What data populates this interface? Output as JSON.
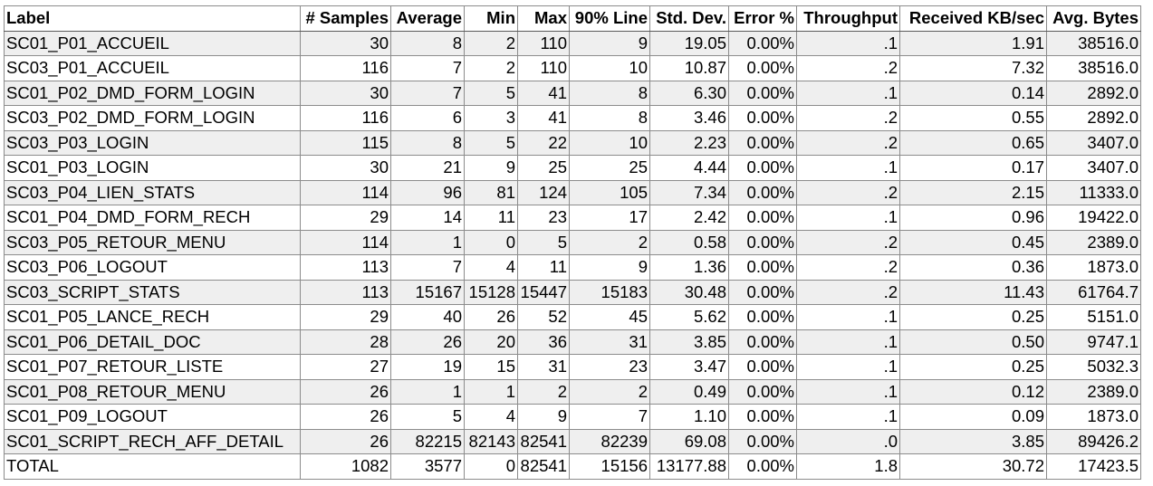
{
  "table": {
    "headers": [
      "Label",
      "# Samples",
      "Average",
      "Min",
      "Max",
      "90% Line",
      "Std. Dev.",
      "Error %",
      "Throughput",
      "Received KB/sec",
      "Avg. Bytes"
    ],
    "rows": [
      [
        "SC01_P01_ACCUEIL",
        "30",
        "8",
        "2",
        "110",
        "9",
        "19.05",
        "0.00%",
        ".1",
        "1.91",
        "38516.0"
      ],
      [
        "SC03_P01_ACCUEIL",
        "116",
        "7",
        "2",
        "110",
        "10",
        "10.87",
        "0.00%",
        ".2",
        "7.32",
        "38516.0"
      ],
      [
        "SC01_P02_DMD_FORM_LOGIN",
        "30",
        "7",
        "5",
        "41",
        "8",
        "6.30",
        "0.00%",
        ".1",
        "0.14",
        "2892.0"
      ],
      [
        "SC03_P02_DMD_FORM_LOGIN",
        "116",
        "6",
        "3",
        "41",
        "8",
        "3.46",
        "0.00%",
        ".2",
        "0.55",
        "2892.0"
      ],
      [
        "SC03_P03_LOGIN",
        "115",
        "8",
        "5",
        "22",
        "10",
        "2.23",
        "0.00%",
        ".2",
        "0.65",
        "3407.0"
      ],
      [
        "SC01_P03_LOGIN",
        "30",
        "21",
        "9",
        "25",
        "25",
        "4.44",
        "0.00%",
        ".1",
        "0.17",
        "3407.0"
      ],
      [
        "SC03_P04_LIEN_STATS",
        "114",
        "96",
        "81",
        "124",
        "105",
        "7.34",
        "0.00%",
        ".2",
        "2.15",
        "11333.0"
      ],
      [
        "SC01_P04_DMD_FORM_RECH",
        "29",
        "14",
        "11",
        "23",
        "17",
        "2.42",
        "0.00%",
        ".1",
        "0.96",
        "19422.0"
      ],
      [
        "SC03_P05_RETOUR_MENU",
        "114",
        "1",
        "0",
        "5",
        "2",
        "0.58",
        "0.00%",
        ".2",
        "0.45",
        "2389.0"
      ],
      [
        "SC03_P06_LOGOUT",
        "113",
        "7",
        "4",
        "11",
        "9",
        "1.36",
        "0.00%",
        ".2",
        "0.36",
        "1873.0"
      ],
      [
        "SC03_SCRIPT_STATS",
        "113",
        "15167",
        "15128",
        "15447",
        "15183",
        "30.48",
        "0.00%",
        ".2",
        "11.43",
        "61764.7"
      ],
      [
        "SC01_P05_LANCE_RECH",
        "29",
        "40",
        "26",
        "52",
        "45",
        "5.62",
        "0.00%",
        ".1",
        "0.25",
        "5151.0"
      ],
      [
        "SC01_P06_DETAIL_DOC",
        "28",
        "26",
        "20",
        "36",
        "31",
        "3.85",
        "0.00%",
        ".1",
        "0.50",
        "9747.1"
      ],
      [
        "SC01_P07_RETOUR_LISTE",
        "27",
        "19",
        "15",
        "31",
        "23",
        "3.47",
        "0.00%",
        ".1",
        "0.25",
        "5032.3"
      ],
      [
        "SC01_P08_RETOUR_MENU",
        "26",
        "1",
        "1",
        "2",
        "2",
        "0.49",
        "0.00%",
        ".1",
        "0.12",
        "2389.0"
      ],
      [
        "SC01_P09_LOGOUT",
        "26",
        "5",
        "4",
        "9",
        "7",
        "1.10",
        "0.00%",
        ".1",
        "0.09",
        "1873.0"
      ],
      [
        "SC01_SCRIPT_RECH_AFF_DETAIL",
        "26",
        "82215",
        "82143",
        "82541",
        "82239",
        "69.08",
        "0.00%",
        ".0",
        "3.85",
        "89426.2"
      ]
    ],
    "total": [
      "TOTAL",
      "1082",
      "3577",
      "0",
      "82541",
      "15156",
      "13177.88",
      "0.00%",
      "1.8",
      "30.72",
      "17423.5"
    ]
  }
}
